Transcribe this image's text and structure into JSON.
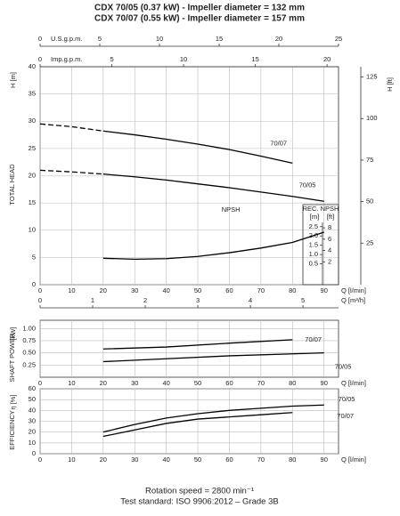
{
  "header": {
    "titles": [
      "CDX 70/05 (0.37 kW) - Impeller diameter = 132 mm",
      "CDX 70/07 (0.55 kW) - Impeller diameter = 157 mm"
    ]
  },
  "footer": {
    "lines": [
      "Rotation speed = 2800 min⁻¹",
      "Test standard: ISO 9906:2012 – Grade 3B"
    ]
  },
  "chart_data": [
    {
      "type": "line",
      "grid": true,
      "xlim": [
        0,
        94.6
      ],
      "xticks": [
        0,
        10,
        20,
        30,
        40,
        50,
        60,
        70,
        80,
        90
      ],
      "xlabel": "Q [l/min]",
      "ylim": [
        0,
        40
      ],
      "yticks": [
        0,
        5,
        10,
        15,
        20,
        25,
        30,
        35,
        40
      ],
      "ylabel": "H [m]",
      "ytitle": "TOTAL HEAD",
      "top_axes": [
        {
          "label": "U.S.g.p.m.",
          "lim": [
            0,
            25
          ],
          "ticks": [
            0,
            5,
            10,
            15,
            20,
            25
          ]
        },
        {
          "label": "Imp.g.p.m.",
          "lim": [
            0,
            20.8
          ],
          "ticks": [
            0,
            5,
            10,
            15,
            20
          ]
        }
      ],
      "right_axis": {
        "label": "H [ft]",
        "lim": [
          0,
          131.2
        ],
        "ticks": [
          25,
          50,
          75,
          100,
          125
        ]
      },
      "y2lim": [
        -0.62,
        11.1
      ],
      "y2ticks": [
        0.5,
        {
          "value": 1,
          "label": "1.0"
        },
        1.5,
        {
          "value": 2,
          "label": "2.0"
        },
        2.5
      ],
      "y2label": "REC. NPSH",
      "y2units": [
        "[m]",
        "[ft]"
      ],
      "y3lim": [
        -2.03,
        36.42
      ],
      "y3ticks": [
        2,
        4,
        6,
        8
      ],
      "series": [
        {
          "name": "70/07",
          "color": "#000000",
          "dashed_below": 20,
          "x": [
            0,
            10,
            20,
            30,
            40,
            50,
            60,
            70,
            80
          ],
          "values": [
            29.5,
            29,
            28.2,
            27.5,
            26.7,
            25.8,
            24.8,
            23.6,
            22.3
          ]
        },
        {
          "name": "70/05",
          "color": "#000000",
          "dashed_below": 20,
          "x": [
            0,
            10,
            20,
            30,
            40,
            50,
            60,
            70,
            80,
            90
          ],
          "values": [
            21,
            20.7,
            20.3,
            19.8,
            19.2,
            18.5,
            17.8,
            17,
            16.2,
            15.3
          ]
        },
        {
          "name": "NPSH",
          "color": "#000000",
          "axis": "y2",
          "x": [
            20,
            30,
            40,
            50,
            60,
            70,
            80,
            90
          ],
          "values": [
            0.8,
            0.75,
            0.78,
            0.9,
            1.1,
            1.35,
            1.65,
            2.2
          ]
        }
      ]
    },
    {
      "type": "line",
      "grid": true,
      "xlim": [
        0,
        94.6
      ],
      "xticks": [
        0,
        10,
        20,
        30,
        40,
        50,
        60,
        70,
        80,
        90
      ],
      "xlabel": "Q [l/min]",
      "ylim": [
        0,
        1.17
      ],
      "yticks": [
        0.25,
        {
          "value": 0.5,
          "label": "0.50"
        },
        0.75,
        {
          "value": 1,
          "label": "1.00"
        }
      ],
      "ylabel": "[kW]",
      "ytitle": "SHAFT POWER",
      "top_axes": [
        {
          "label": "Q [m³/h]",
          "lim": [
            0,
            5.676
          ],
          "ticks": [
            0,
            1,
            2,
            3,
            4,
            5
          ]
        }
      ],
      "series": [
        {
          "name": "70/07",
          "color": "#000000",
          "x": [
            20,
            40,
            60,
            80
          ],
          "values": [
            0.58,
            0.62,
            0.7,
            0.77
          ]
        },
        {
          "name": "70/05",
          "color": "#000000",
          "x": [
            20,
            40,
            60,
            80,
            90
          ],
          "values": [
            0.32,
            0.38,
            0.44,
            0.48,
            0.5
          ]
        }
      ]
    },
    {
      "type": "line",
      "grid": true,
      "xlim": [
        0,
        94.6
      ],
      "xticks": [
        0,
        10,
        20,
        30,
        40,
        50,
        60,
        70,
        80,
        90
      ],
      "xlabel": "Q [l/min]",
      "ylim": [
        0,
        60
      ],
      "yticks": [
        0,
        10,
        20,
        30,
        40,
        50,
        60
      ],
      "ylabel": "η [%]",
      "ytitle": "EFFICIENCY",
      "series": [
        {
          "name": "70/05",
          "color": "#000000",
          "x": [
            20,
            30,
            40,
            50,
            60,
            70,
            80,
            90
          ],
          "values": [
            20,
            27,
            33,
            37,
            40,
            42,
            44,
            45
          ]
        },
        {
          "name": "70/07",
          "color": "#000000",
          "x": [
            20,
            30,
            40,
            50,
            60,
            70,
            80
          ],
          "values": [
            16,
            22,
            28,
            32,
            34,
            36,
            38
          ]
        }
      ]
    }
  ]
}
